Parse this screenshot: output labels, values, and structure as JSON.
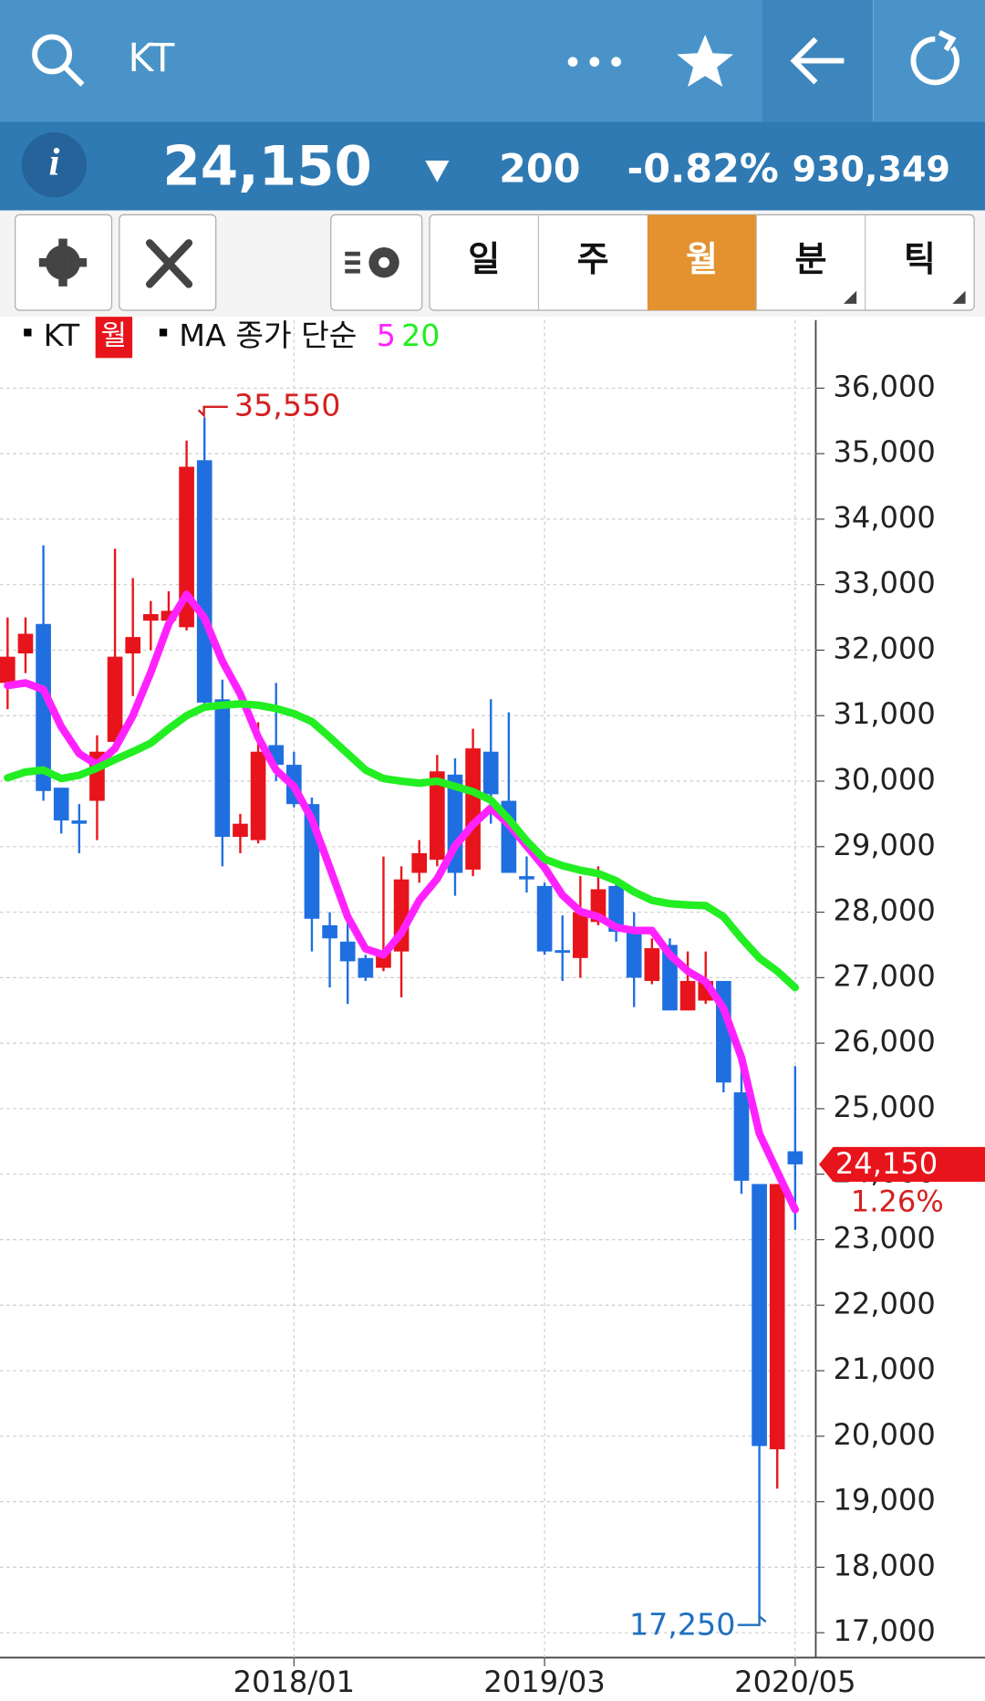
{
  "header": {
    "search_text": "KT"
  },
  "quote": {
    "price": "24,150",
    "change": "200",
    "change_pct": "-0.82%",
    "volume": "930,349"
  },
  "tabs": [
    "일",
    "주",
    "월",
    "분",
    "틱"
  ],
  "chart_data": {
    "type": "candlestick",
    "legend": {
      "symbol": "KT",
      "period": "월",
      "ma_label": "MA 종가 단순"
    },
    "categories": [
      null,
      null,
      null,
      null,
      null,
      null,
      null,
      null,
      null,
      null,
      null,
      null,
      null,
      null,
      null,
      null,
      "2018/01",
      null,
      null,
      null,
      null,
      null,
      null,
      null,
      null,
      null,
      null,
      null,
      null,
      null,
      "2019/03",
      null,
      null,
      null,
      null,
      null,
      null,
      null,
      null,
      null,
      null,
      null,
      null,
      null,
      "2020/05"
    ],
    "open": [
      31500,
      31950,
      32400,
      29900,
      29400,
      29700,
      30600,
      31950,
      32450,
      32450,
      32350,
      34900,
      31250,
      29150,
      29100,
      30550,
      30250,
      29650,
      27800,
      27550,
      27300,
      27150,
      27400,
      28600,
      28800,
      30100,
      28650,
      30450,
      29700,
      28550,
      28400,
      27420,
      27300,
      27850,
      28400,
      27750,
      26950,
      27500,
      26500,
      26650,
      26950,
      25250,
      23850,
      19800,
      24350
    ],
    "high": [
      32500,
      32500,
      33600,
      29900,
      29650,
      30700,
      33550,
      33100,
      32750,
      32900,
      35200,
      35550,
      31550,
      29500,
      30900,
      31500,
      30450,
      29750,
      28000,
      27900,
      27350,
      28850,
      28700,
      29100,
      30400,
      30350,
      30800,
      31250,
      31050,
      28850,
      28450,
      27950,
      28550,
      28700,
      28500,
      28000,
      27600,
      27600,
      27400,
      27400,
      26950,
      25700,
      23850,
      23850,
      25650
    ],
    "low": [
      31100,
      31650,
      29700,
      29200,
      28900,
      29100,
      30500,
      31300,
      32000,
      32400,
      32300,
      31150,
      28700,
      28900,
      29050,
      30000,
      29600,
      27400,
      26850,
      26600,
      26950,
      27100,
      26700,
      28450,
      28700,
      28250,
      28550,
      29350,
      28600,
      28300,
      27350,
      26950,
      27000,
      27800,
      27550,
      26550,
      26900,
      26500,
      26500,
      26600,
      25250,
      23700,
      17250,
      19200,
      23150
    ],
    "close": [
      31900,
      32250,
      29850,
      29400,
      29350,
      30450,
      31900,
      32200,
      32550,
      32600,
      34800,
      31200,
      29150,
      29350,
      30450,
      30250,
      29650,
      27900,
      27600,
      27250,
      27000,
      27400,
      28500,
      28900,
      30150,
      28600,
      30500,
      29800,
      28600,
      28500,
      27400,
      27380,
      28000,
      28350,
      27700,
      27000,
      27450,
      26500,
      26950,
      26950,
      25400,
      23900,
      19850,
      23850,
      24150
    ],
    "up_color": "#e8141b",
    "down_color": "#1f6fe0",
    "ma": [
      {
        "name": "5",
        "color": "#ff22ff",
        "values": [
          31460,
          31500,
          31400,
          30830,
          30420,
          30250,
          30500,
          31000,
          31660,
          32400,
          32850,
          32490,
          31830,
          31330,
          30670,
          30170,
          29920,
          29420,
          28680,
          27930,
          27440,
          27350,
          27680,
          28180,
          28510,
          29010,
          29340,
          29590,
          29340,
          29010,
          28680,
          28260,
          28010,
          27930,
          27770,
          27720,
          27720,
          27350,
          27100,
          26940,
          26530,
          25780,
          24620,
          24040,
          23460
        ]
      },
      {
        "name": "20",
        "color": "#22ee22",
        "values": [
          30050,
          30140,
          30170,
          30040,
          30090,
          30200,
          30330,
          30450,
          30580,
          30800,
          31000,
          31130,
          31160,
          31180,
          31160,
          31110,
          31030,
          30910,
          30670,
          30420,
          30170,
          30040,
          30000,
          29970,
          30000,
          29920,
          29840,
          29710,
          29420,
          29090,
          28810,
          28710,
          28640,
          28590,
          28480,
          28310,
          28180,
          28130,
          28110,
          28100,
          27930,
          27600,
          27300,
          27100,
          26850
        ]
      }
    ],
    "ylim": [
      16620,
      37040
    ],
    "yticks": [
      {
        "value": 17000,
        "label": "17,000"
      },
      {
        "value": 18000,
        "label": "18,000"
      },
      {
        "value": 19000,
        "label": "19,000"
      },
      {
        "value": 20000,
        "label": "20,000"
      },
      {
        "value": 21000,
        "label": "21,000"
      },
      {
        "value": 22000,
        "label": "22,000"
      },
      {
        "value": 23000,
        "label": "23,000"
      },
      {
        "value": 24000,
        "label": "24,000"
      },
      {
        "value": 25000,
        "label": "25,000"
      },
      {
        "value": 26000,
        "label": "26,000"
      },
      {
        "value": 27000,
        "label": "27,000"
      },
      {
        "value": 28000,
        "label": "28,000"
      },
      {
        "value": 29000,
        "label": "29,000"
      },
      {
        "value": 30000,
        "label": "30,000"
      },
      {
        "value": 31000,
        "label": "31,000"
      },
      {
        "value": 32000,
        "label": "32,000"
      },
      {
        "value": 33000,
        "label": "33,000"
      },
      {
        "value": 34000,
        "label": "34,000"
      },
      {
        "value": 35000,
        "label": "35,000"
      },
      {
        "value": 36000,
        "label": "36,000"
      }
    ],
    "grid": true,
    "high_marker": {
      "value": 35550,
      "label": "35,550"
    },
    "low_marker": {
      "value": 17250,
      "label": "17,250"
    },
    "last_price": {
      "value": 24150,
      "label": "24,150"
    },
    "last_change": "1.26%"
  }
}
